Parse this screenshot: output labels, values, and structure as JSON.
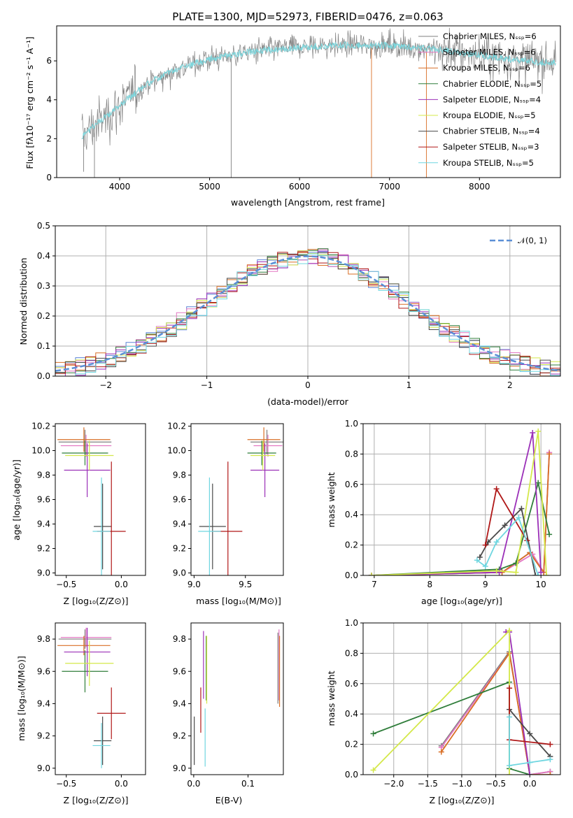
{
  "figure": {
    "title": "PLATE=1300, MJD=52973, FIBERID=0476, z=0.063"
  },
  "model_labels": [
    "Chabrier MILES, Nₛₛₚ=6",
    "Salpeter MILES, Nₛₛₚ=6",
    "Kroupa MILES, Nₛₛₚ=6",
    "Chabrier ELODIE, Nₛₛₚ=5",
    "Salpeter ELODIE, Nₛₛₚ=4",
    "Kroupa ELODIE, Nₛₛₚ=5",
    "Chabrier STELIB, Nₛₛₚ=4",
    "Salpeter STELIB, Nₛₛₚ=3",
    "Kroupa STELIB, Nₛₛₚ=5"
  ],
  "colors": [
    "#7f7f7f",
    "#e377c2",
    "#d96f26",
    "#2f7d3a",
    "#9b30b8",
    "#d4e84a",
    "#4a4a4a",
    "#b01818",
    "#6fd6e0"
  ],
  "chart_data": [
    {
      "id": "spectrum",
      "type": "line",
      "xlabel": "wavelength [Angstrom, rest frame]",
      "ylabel": "Flux [fλ10⁻¹⁷ erg cm⁻² s⁻¹ A⁻¹]",
      "xlim": [
        3300,
        8900
      ],
      "ylim": [
        0,
        7.8
      ],
      "xticks": [
        4000,
        5000,
        6000,
        7000,
        8000
      ],
      "yticks": [
        0,
        2,
        4,
        6
      ],
      "data_color": "#808080",
      "model_color": "#7ed8de",
      "continuum": {
        "x": [
          3580,
          3700,
          3900,
          4100,
          4300,
          4600,
          5000,
          5500,
          6000,
          6500,
          7000,
          7500,
          8000,
          8500,
          8850
        ],
        "y": [
          2.1,
          2.6,
          3.3,
          4.1,
          4.8,
          5.5,
          6.1,
          6.5,
          6.7,
          6.8,
          6.8,
          6.6,
          6.3,
          6.0,
          5.9
        ]
      }
    },
    {
      "id": "residuals",
      "type": "bar",
      "xlabel": "(data-model)/error",
      "ylabel": "Normed distribution",
      "xlim": [
        -2.5,
        2.5
      ],
      "ylim": [
        0,
        0.5
      ],
      "xticks": [
        -2,
        -1,
        0,
        1,
        2
      ],
      "yticks": [
        0.0,
        0.1,
        0.2,
        0.3,
        0.4,
        0.5
      ],
      "legend": "𝒩(0, 1)",
      "legend_position": "top-right",
      "reference_curve": "normal(0,1)",
      "bin_width": 0.1,
      "grid": true
    },
    {
      "id": "age_vs_Z",
      "type": "scatter",
      "xlabel": "Z [log₁₀(Z/Z⊙)]",
      "ylabel": "age  [log₁₀(age/yr)]",
      "xlim": [
        -0.6,
        0.22
      ],
      "ylim": [
        8.98,
        10.22
      ],
      "xticks": [
        -0.5,
        0.0
      ],
      "yticks": [
        9.0,
        9.2,
        9.4,
        9.6,
        9.8,
        10.0,
        10.2
      ],
      "points": [
        {
          "x": -0.33,
          "xerr": 0.24,
          "y": 10.07,
          "yerr": 0.1,
          "c": 0
        },
        {
          "x": -0.32,
          "xerr": 0.23,
          "y": 10.04,
          "yerr": 0.09,
          "c": 1
        },
        {
          "x": -0.34,
          "xerr": 0.24,
          "y": 10.09,
          "yerr": 0.1,
          "c": 2
        },
        {
          "x": -0.33,
          "xerr": 0.21,
          "y": 9.98,
          "yerr": 0.1,
          "c": 3
        },
        {
          "x": -0.31,
          "xerr": 0.21,
          "y": 9.84,
          "yerr": 0.22,
          "c": 4
        },
        {
          "x": -0.29,
          "xerr": 0.22,
          "y": 9.96,
          "yerr": 0.12,
          "c": 5
        },
        {
          "x": -0.17,
          "xerr": 0.08,
          "y": 9.38,
          "yerr": 0.35,
          "c": 6
        },
        {
          "x": -0.09,
          "xerr": 0.13,
          "y": 9.34,
          "yerr": 0.57,
          "c": 7
        },
        {
          "x": -0.18,
          "xerr": 0.08,
          "y": 9.34,
          "yerr": 0.44,
          "c": 8
        }
      ]
    },
    {
      "id": "age_vs_mass",
      "type": "scatter",
      "xlabel": "mass [log₁₀(M/M⊙)]",
      "ylabel": "",
      "xlim": [
        8.97,
        9.87
      ],
      "ylim": [
        8.98,
        10.22
      ],
      "xticks": [
        9.0,
        9.5
      ],
      "yticks": [
        9.0,
        9.2,
        9.4,
        9.6,
        9.8,
        10.0,
        10.2
      ],
      "points": [
        {
          "x": 9.71,
          "xerr": 0.16,
          "y": 10.07,
          "yerr": 0.1,
          "c": 0
        },
        {
          "x": 9.72,
          "xerr": 0.14,
          "y": 10.04,
          "yerr": 0.09,
          "c": 1
        },
        {
          "x": 9.68,
          "xerr": 0.16,
          "y": 10.09,
          "yerr": 0.1,
          "c": 2
        },
        {
          "x": 9.66,
          "xerr": 0.14,
          "y": 9.98,
          "yerr": 0.1,
          "c": 3
        },
        {
          "x": 9.69,
          "xerr": 0.14,
          "y": 9.84,
          "yerr": 0.22,
          "c": 4
        },
        {
          "x": 9.67,
          "xerr": 0.12,
          "y": 9.96,
          "yerr": 0.12,
          "c": 5
        },
        {
          "x": 9.18,
          "xerr": 0.13,
          "y": 9.38,
          "yerr": 0.35,
          "c": 6
        },
        {
          "x": 9.33,
          "xerr": 0.14,
          "y": 9.34,
          "yerr": 0.57,
          "c": 7
        },
        {
          "x": 9.15,
          "xerr": 0.11,
          "y": 9.34,
          "yerr": 0.44,
          "c": 8
        }
      ]
    },
    {
      "id": "weight_vs_age",
      "type": "line",
      "xlabel": "age  [log₁₀(age/yr)]",
      "ylabel": "mass weight",
      "xlim": [
        6.8,
        10.35
      ],
      "ylim": [
        0,
        1.0
      ],
      "xticks": [
        7,
        8,
        9,
        10
      ],
      "yticks": [
        0.0,
        0.2,
        0.4,
        0.6,
        0.8,
        1.0
      ],
      "grid": true,
      "series": [
        {
          "c": 0,
          "x": [
            6.95,
            9.3,
            9.8,
            10.05,
            10.15
          ],
          "y": [
            0.0,
            0.02,
            0.15,
            0.02,
            0.81
          ]
        },
        {
          "c": 1,
          "x": [
            6.95,
            9.3,
            9.85,
            10.05,
            10.15
          ],
          "y": [
            0.0,
            0.02,
            0.14,
            0.02,
            0.81
          ]
        },
        {
          "c": 2,
          "x": [
            6.95,
            9.3,
            9.8,
            10.05,
            10.15
          ],
          "y": [
            0.0,
            0.02,
            0.15,
            0.02,
            0.8
          ]
        },
        {
          "c": 3,
          "x": [
            6.95,
            9.25,
            9.55,
            9.95,
            10.15
          ],
          "y": [
            0.0,
            0.04,
            0.08,
            0.61,
            0.27
          ]
        },
        {
          "c": 4,
          "x": [
            6.95,
            9.25,
            9.85,
            10.0
          ],
          "y": [
            0.0,
            0.02,
            0.94,
            0.02
          ]
        },
        {
          "c": 5,
          "x": [
            6.95,
            9.2,
            9.55,
            9.95,
            10.1
          ],
          "y": [
            0.0,
            0.03,
            0.02,
            0.95,
            0.0
          ]
        },
        {
          "c": 6,
          "x": [
            8.9,
            9.05,
            9.35,
            9.65,
            9.9
          ],
          "y": [
            0.12,
            0.22,
            0.33,
            0.44,
            0.0
          ]
        },
        {
          "c": 7,
          "x": [
            9.0,
            9.2,
            9.75
          ],
          "y": [
            0.2,
            0.57,
            0.23
          ]
        },
        {
          "c": 8,
          "x": [
            8.85,
            9.0,
            9.2,
            9.6,
            9.95
          ],
          "y": [
            0.1,
            0.06,
            0.22,
            0.38,
            0.0
          ]
        }
      ]
    },
    {
      "id": "mass_vs_Z",
      "type": "scatter",
      "xlabel": "Z [log₁₀(Z/Z⊙)]",
      "ylabel": "mass [log₁₀(M/M⊙)]",
      "xlim": [
        -0.6,
        0.22
      ],
      "ylim": [
        8.96,
        9.9
      ],
      "xticks": [
        -0.5,
        0.0
      ],
      "yticks": [
        9.0,
        9.2,
        9.4,
        9.6,
        9.8
      ],
      "points": [
        {
          "x": -0.33,
          "xerr": 0.24,
          "y": 9.8,
          "yerr": 0.06,
          "c": 0
        },
        {
          "x": -0.32,
          "xerr": 0.23,
          "y": 9.81,
          "yerr": 0.06,
          "c": 1
        },
        {
          "x": -0.34,
          "xerr": 0.24,
          "y": 9.76,
          "yerr": 0.06,
          "c": 2
        },
        {
          "x": -0.33,
          "xerr": 0.21,
          "y": 9.6,
          "yerr": 0.13,
          "c": 3
        },
        {
          "x": -0.31,
          "xerr": 0.21,
          "y": 9.72,
          "yerr": 0.15,
          "c": 4
        },
        {
          "x": -0.29,
          "xerr": 0.22,
          "y": 9.65,
          "yerr": 0.14,
          "c": 5
        },
        {
          "x": -0.17,
          "xerr": 0.08,
          "y": 9.17,
          "yerr": 0.15,
          "c": 6
        },
        {
          "x": -0.09,
          "xerr": 0.13,
          "y": 9.34,
          "yerr": 0.16,
          "c": 7
        },
        {
          "x": -0.18,
          "xerr": 0.08,
          "y": 9.14,
          "yerr": 0.14,
          "c": 8
        }
      ]
    },
    {
      "id": "mass_vs_EBV",
      "type": "scatter",
      "xlabel": "E(B-V)",
      "ylabel": "",
      "xlim": [
        -0.005,
        0.165
      ],
      "ylim": [
        8.96,
        9.9
      ],
      "xticks": [
        0.0,
        0.1
      ],
      "yticks": [
        9.0,
        9.2,
        9.4,
        9.6,
        9.8
      ],
      "points": [
        {
          "x": 0.155,
          "xerr": 0.0,
          "y": 9.62,
          "yerr": 0.22,
          "c": 0
        },
        {
          "x": 0.157,
          "xerr": 0.0,
          "y": 9.64,
          "yerr": 0.22,
          "c": 1
        },
        {
          "x": 0.158,
          "xerr": 0.0,
          "y": 9.6,
          "yerr": 0.22,
          "c": 2
        },
        {
          "x": 0.023,
          "xerr": 0.0,
          "y": 9.62,
          "yerr": 0.2,
          "c": 3
        },
        {
          "x": 0.018,
          "xerr": 0.0,
          "y": 9.64,
          "yerr": 0.21,
          "c": 4
        },
        {
          "x": 0.024,
          "xerr": 0.0,
          "y": 9.61,
          "yerr": 0.21,
          "c": 5
        },
        {
          "x": 0.001,
          "xerr": 0.0,
          "y": 9.17,
          "yerr": 0.15,
          "c": 6
        },
        {
          "x": 0.013,
          "xerr": 0.0,
          "y": 9.36,
          "yerr": 0.14,
          "c": 7
        },
        {
          "x": 0.021,
          "xerr": 0.0,
          "y": 9.19,
          "yerr": 0.18,
          "c": 8
        }
      ]
    },
    {
      "id": "weight_vs_Z",
      "type": "line",
      "xlabel": "Z [log₁₀(Z/Z⊙)]",
      "ylabel": "mass weight",
      "xlim": [
        -2.45,
        0.45
      ],
      "ylim": [
        0,
        1.0
      ],
      "xticks": [
        -2.0,
        -1.5,
        -1.0,
        -0.5,
        0.0
      ],
      "yticks": [
        0.0,
        0.2,
        0.4,
        0.6,
        0.8,
        1.0
      ],
      "grid": true,
      "series": [
        {
          "c": 0,
          "x": [
            -1.3,
            -0.3,
            0.0,
            0.3
          ],
          "y": [
            0.19,
            0.81,
            0.0,
            0.02
          ]
        },
        {
          "c": 1,
          "x": [
            -1.3,
            -0.3,
            0.0,
            0.3
          ],
          "y": [
            0.18,
            0.8,
            0.0,
            0.02
          ]
        },
        {
          "c": 2,
          "x": [
            -1.3,
            -0.3,
            0.0,
            0.3
          ],
          "y": [
            0.15,
            0.8,
            0.0,
            0.0
          ]
        },
        {
          "c": 3,
          "x": [
            -2.3,
            -0.3,
            -0.3,
            0.0
          ],
          "y": [
            0.27,
            0.61,
            0.04,
            0.0
          ]
        },
        {
          "c": 4,
          "x": [
            -0.35,
            -0.3,
            0.0
          ],
          "y": [
            0.94,
            0.94,
            0.0
          ]
        },
        {
          "c": 5,
          "x": [
            -2.3,
            -0.3,
            -0.3
          ],
          "y": [
            0.03,
            0.95,
            0.0
          ]
        },
        {
          "c": 6,
          "x": [
            -0.3,
            0.0,
            0.3
          ],
          "y": [
            0.43,
            0.27,
            0.12
          ]
        },
        {
          "c": 7,
          "x": [
            -0.3,
            -0.3,
            0.3
          ],
          "y": [
            0.57,
            0.23,
            0.2
          ]
        },
        {
          "c": 8,
          "x": [
            -0.3,
            -0.3,
            0.0,
            0.3
          ],
          "y": [
            0.38,
            0.06,
            0.08,
            0.1
          ]
        }
      ]
    }
  ]
}
